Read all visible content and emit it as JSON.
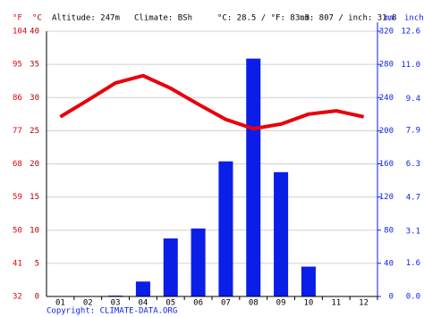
{
  "chart_data": {
    "type": "climate",
    "annotations": [
      "Altitude: 247m",
      "Climate: BSh",
      "°C: 28.5 / °F: 83.3",
      "mm: 807 / inch: 31.8"
    ],
    "footer": "Copyright: CLIMATE-DATA.ORG",
    "y_label": "°C",
    "y3_label": "°F",
    "y2_label": "mm",
    "y4_label": "inch",
    "categories": [
      "01",
      "02",
      "03",
      "04",
      "05",
      "06",
      "07",
      "08",
      "09",
      "10",
      "11",
      "12"
    ],
    "ylim": [
      0,
      40
    ],
    "yticks": [
      0,
      5,
      10,
      15,
      20,
      25,
      30,
      35,
      40
    ],
    "y3lim": [
      32,
      104
    ],
    "y3ticks": [
      32,
      41,
      50,
      59,
      68,
      77,
      86,
      95,
      104
    ],
    "y2lim": [
      0,
      320
    ],
    "y2ticks": [
      0,
      40,
      80,
      120,
      160,
      200,
      240,
      280,
      320
    ],
    "y4lim": [
      0,
      12.6
    ],
    "y4ticks": [
      {
        "value": 0,
        "label": "0.0"
      },
      {
        "value": 1.6,
        "label": "1.6"
      },
      {
        "value": 3.1,
        "label": "3.1"
      },
      {
        "value": 4.7,
        "label": "4.7"
      },
      {
        "value": 6.3,
        "label": "6.3"
      },
      {
        "value": 7.9,
        "label": "7.9"
      },
      {
        "value": 9.4,
        "label": "9.4"
      },
      {
        "value": 11.0,
        "label": "11.0"
      },
      {
        "value": 12.6,
        "label": "12.6"
      }
    ],
    "grid": true,
    "series": [
      {
        "type": "line",
        "color": "#e8000b",
        "values": [
          27.1,
          29.6,
          32.2,
          33.3,
          31.4,
          29.0,
          26.7,
          25.3,
          26.0,
          27.5,
          28.0,
          27.1
        ]
      },
      {
        "type": "bar",
        "axis": "y2",
        "color": "#0a1ee8",
        "values": [
          0,
          0,
          1,
          18,
          70,
          82,
          163,
          287,
          150,
          36,
          0,
          0
        ]
      }
    ]
  }
}
